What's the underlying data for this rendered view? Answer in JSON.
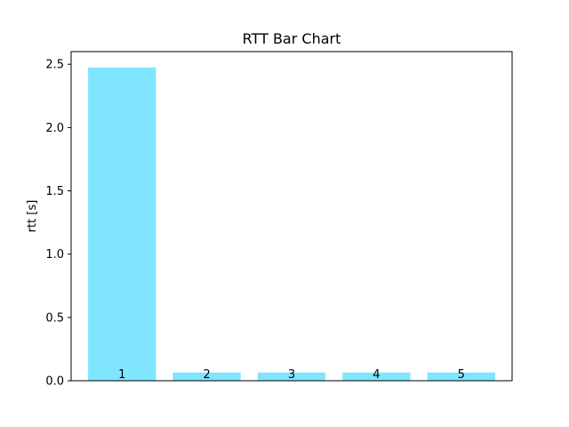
{
  "chart_data": {
    "type": "bar",
    "title": "RTT Bar Chart",
    "xlabel": "",
    "ylabel": "rtt [s]",
    "categories": [
      "1",
      "2",
      "3",
      "4",
      "5"
    ],
    "values": [
      2.475,
      0.065,
      0.065,
      0.065,
      0.065
    ],
    "bar_labels": [
      "1",
      "2",
      "3",
      "4",
      "5"
    ],
    "ylim": [
      0,
      2.6
    ],
    "yticks": [
      0.0,
      0.5,
      1.0,
      1.5,
      2.0,
      2.5
    ],
    "ytick_labels": [
      "0.0",
      "0.5",
      "1.0",
      "1.5",
      "2.0",
      "2.5"
    ],
    "xticks_visible": false,
    "grid": false,
    "legend": "none",
    "bar_color": "#80e5ff"
  }
}
